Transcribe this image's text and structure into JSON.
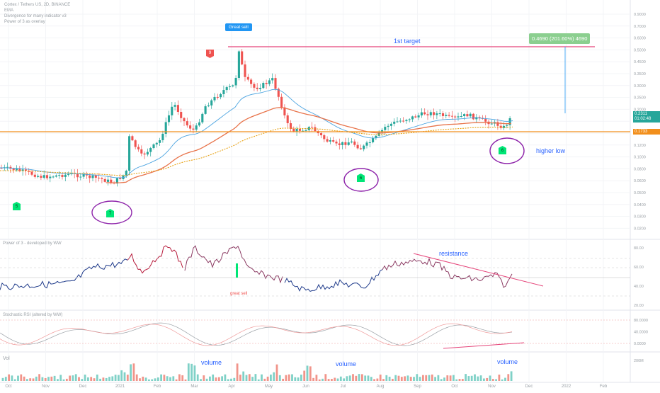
{
  "header": {
    "symbol_line": "Cortex / Tethers US, 2D, BINANCE",
    "indicators": [
      "EMA",
      "Divergence for many indicator v3",
      "Power of 3 as overlay"
    ]
  },
  "colors": {
    "up": "#26a69a",
    "down": "#ef5350",
    "ema_blue": "#4aa3e0",
    "ema_red": "#e8734a",
    "ema_yellow": "#e8a317",
    "support": "#f28f1c",
    "target": "#e5457a",
    "annotation": "#8e24aa",
    "text_blue": "#2962ff",
    "signal_green": "#00e676",
    "signal_red": "#ef5350"
  },
  "annotations": {
    "great_sell_badge": "Great sell",
    "first_target": "1st target",
    "target_box": "0.4690 (201.60%) 4690",
    "higher_low": "higher low",
    "resistance": "resistance",
    "great_sell_red": "great sell",
    "volume1": "volume",
    "volume2": "volume",
    "volume3": "volume",
    "sell9": "9",
    "buy5": "5",
    "buy7": "7",
    "buy6a": "6",
    "buy6b": "6"
  },
  "price_labels": {
    "last": "0.2311",
    "countdown": "01:02:48",
    "support": "0.1733"
  },
  "panels": {
    "power_title": "Power of 3 - developed by WW",
    "stoch_title": "Stochastic RSI (altered by WW)",
    "vol_title": "Vol"
  },
  "chart_data": {
    "type": "candlestick",
    "x_ticks": [
      "Oct",
      "Nov",
      "Dec",
      "2021",
      "Feb",
      "Mar",
      "Apr",
      "May",
      "Jun",
      "Jul",
      "Aug",
      "Sep",
      "Oct",
      "Nov",
      "Dec",
      "2022",
      "Feb"
    ],
    "y_ticks_main": [
      "0.9000",
      "0.7000",
      "0.6000",
      "0.5000",
      "0.4500",
      "0.3500",
      "0.3000",
      "0.2500",
      "0.2000",
      "0.1800",
      "0.1500",
      "0.1200",
      "0.1000",
      "0.0800",
      "0.0600",
      "0.0500",
      "0.0400",
      "0.0300",
      "0.0200"
    ],
    "y_ticks_power": [
      "80.00",
      "60.00",
      "40.00",
      "20.00"
    ],
    "y_ticks_stoch": [
      "80.0000",
      "40.0000",
      "0.0000"
    ],
    "y_ticks_vol": [
      "200M"
    ],
    "scale": "log",
    "support_level": 0.1733,
    "first_target": 0.469,
    "target_gain_pct": 201.6,
    "last_price": 0.2311
  }
}
